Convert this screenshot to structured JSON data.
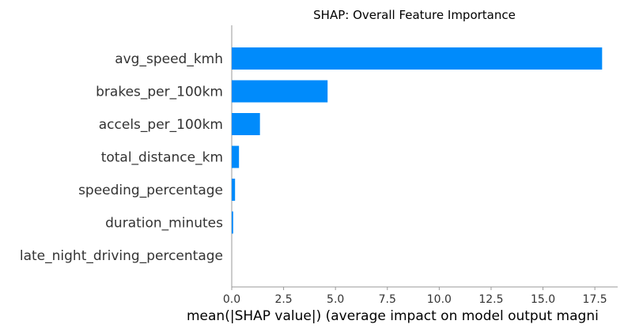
{
  "chart_data": {
    "type": "bar",
    "orientation": "horizontal",
    "title": "SHAP: Overall Feature Importance",
    "xlabel": "mean(|SHAP value|) (average impact on model output magni",
    "ylabel": "",
    "categories": [
      "avg_speed_kmh",
      "brakes_per_100km",
      "accels_per_100km",
      "total_distance_km",
      "speeding_percentage",
      "duration_minutes",
      "late_night_driving_percentage"
    ],
    "values": [
      17.85,
      4.62,
      1.36,
      0.35,
      0.16,
      0.07,
      0.0
    ],
    "xlim": [
      0,
      18.6
    ],
    "xticks": [
      0.0,
      2.5,
      5.0,
      7.5,
      10.0,
      12.5,
      15.0,
      17.5
    ],
    "xtick_labels": [
      "0.0",
      "2.5",
      "5.0",
      "7.5",
      "10.0",
      "12.5",
      "15.0",
      "17.5"
    ],
    "bar_color": "#008bfb",
    "grid": false,
    "legend": "none"
  }
}
